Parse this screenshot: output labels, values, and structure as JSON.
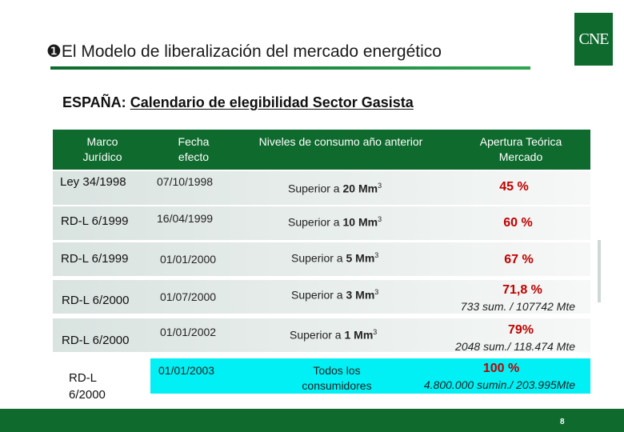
{
  "header": {
    "title_bullet": "❶",
    "title": "El Modelo de liberalización del mercado energético",
    "logo": "CNE",
    "subtitle_prefix": "ESPAÑA:",
    "subtitle_link": "Calendario de elegibilidad Sector Gasista"
  },
  "table": {
    "columns": [
      {
        "line1": "Marco",
        "line2": "Jurídico"
      },
      {
        "line1": "Fecha",
        "line2": "efecto"
      },
      {
        "line1": "Niveles de consumo año anterior",
        "line2": ""
      },
      {
        "line1": "Apertura Teórica",
        "line2": "Mercado"
      }
    ],
    "rows": [
      {
        "marco": "Ley 34/1998",
        "fecha": "07/10/1998",
        "nivel_prefix": "Superior a",
        "nivel_value": "20 Mm",
        "nivel_sup": "3",
        "pct": "45 %",
        "detail": ""
      },
      {
        "marco": "RD-L 6/1999",
        "fecha": "16/04/1999",
        "nivel_prefix": "Superior a",
        "nivel_value": "10 Mm",
        "nivel_sup": "3",
        "pct": "60 %",
        "detail": ""
      },
      {
        "marco": "RD-L 6/1999",
        "fecha": "01/01/2000",
        "nivel_prefix": "Superior a",
        "nivel_value": "5 Mm",
        "nivel_sup": "3",
        "pct": "67 %",
        "detail": ""
      },
      {
        "marco": "RD-L 6/2000",
        "fecha": "01/07/2000",
        "nivel_prefix": "Superior a",
        "nivel_value": "3 Mm",
        "nivel_sup": "3",
        "pct": "71,8 %",
        "detail": "733 sum. / 107742 Mte"
      },
      {
        "marco": "RD-L 6/2000",
        "fecha": "01/01/2002",
        "nivel_prefix": "Superior a",
        "nivel_value": "1 Mm",
        "nivel_sup": "3",
        "pct": "79%",
        "detail": "2048 sum./ 118.474 Mte"
      },
      {
        "marco_line1": "RD-L",
        "marco_line2": "6/2000",
        "fecha": "01/01/2003",
        "nivel_line1": "Todos los",
        "nivel_line2": "consumidores",
        "pct": "100 %",
        "detail": "4.800.000 sumin./ 203.995Mte"
      }
    ]
  },
  "footer": {
    "page": "8"
  },
  "colors": {
    "brand_green": "#0f6a2e",
    "highlight_cyan": "#00f0f5",
    "percent_red": "#c00000"
  }
}
